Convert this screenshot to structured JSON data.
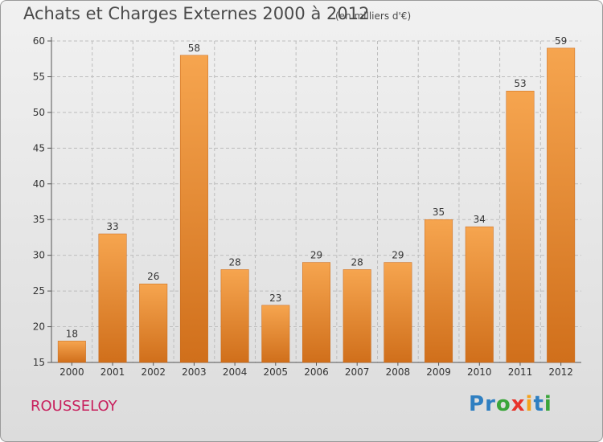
{
  "title": "Achats et Charges Externes 2000 à 2012",
  "subtitle": "(en milliers d'€)",
  "commune": "ROUSSELOY",
  "logo": {
    "letters": [
      "P",
      "r",
      "o",
      "x",
      "i",
      "t",
      "i"
    ],
    "colors": [
      "#2f7fc1",
      "#2f7fc1",
      "#3aa53a",
      "#e8332a",
      "#f5a21b",
      "#2f7fc1",
      "#3aa53a"
    ]
  },
  "colors": {
    "bar_light": "#f6a54f",
    "bar_dark": "#d06f1b",
    "accent_text": "#c8205d"
  },
  "chart_data": {
    "type": "bar",
    "categories": [
      "2000",
      "2001",
      "2002",
      "2003",
      "2004",
      "2005",
      "2006",
      "2007",
      "2008",
      "2009",
      "2010",
      "2011",
      "2012"
    ],
    "values": [
      18,
      33,
      26,
      58,
      28,
      23,
      29,
      28,
      29,
      35,
      34,
      53,
      59
    ],
    "ylim": [
      15,
      60
    ],
    "yticks": [
      15,
      20,
      25,
      30,
      35,
      40,
      45,
      50,
      55,
      60
    ],
    "grid": true
  }
}
